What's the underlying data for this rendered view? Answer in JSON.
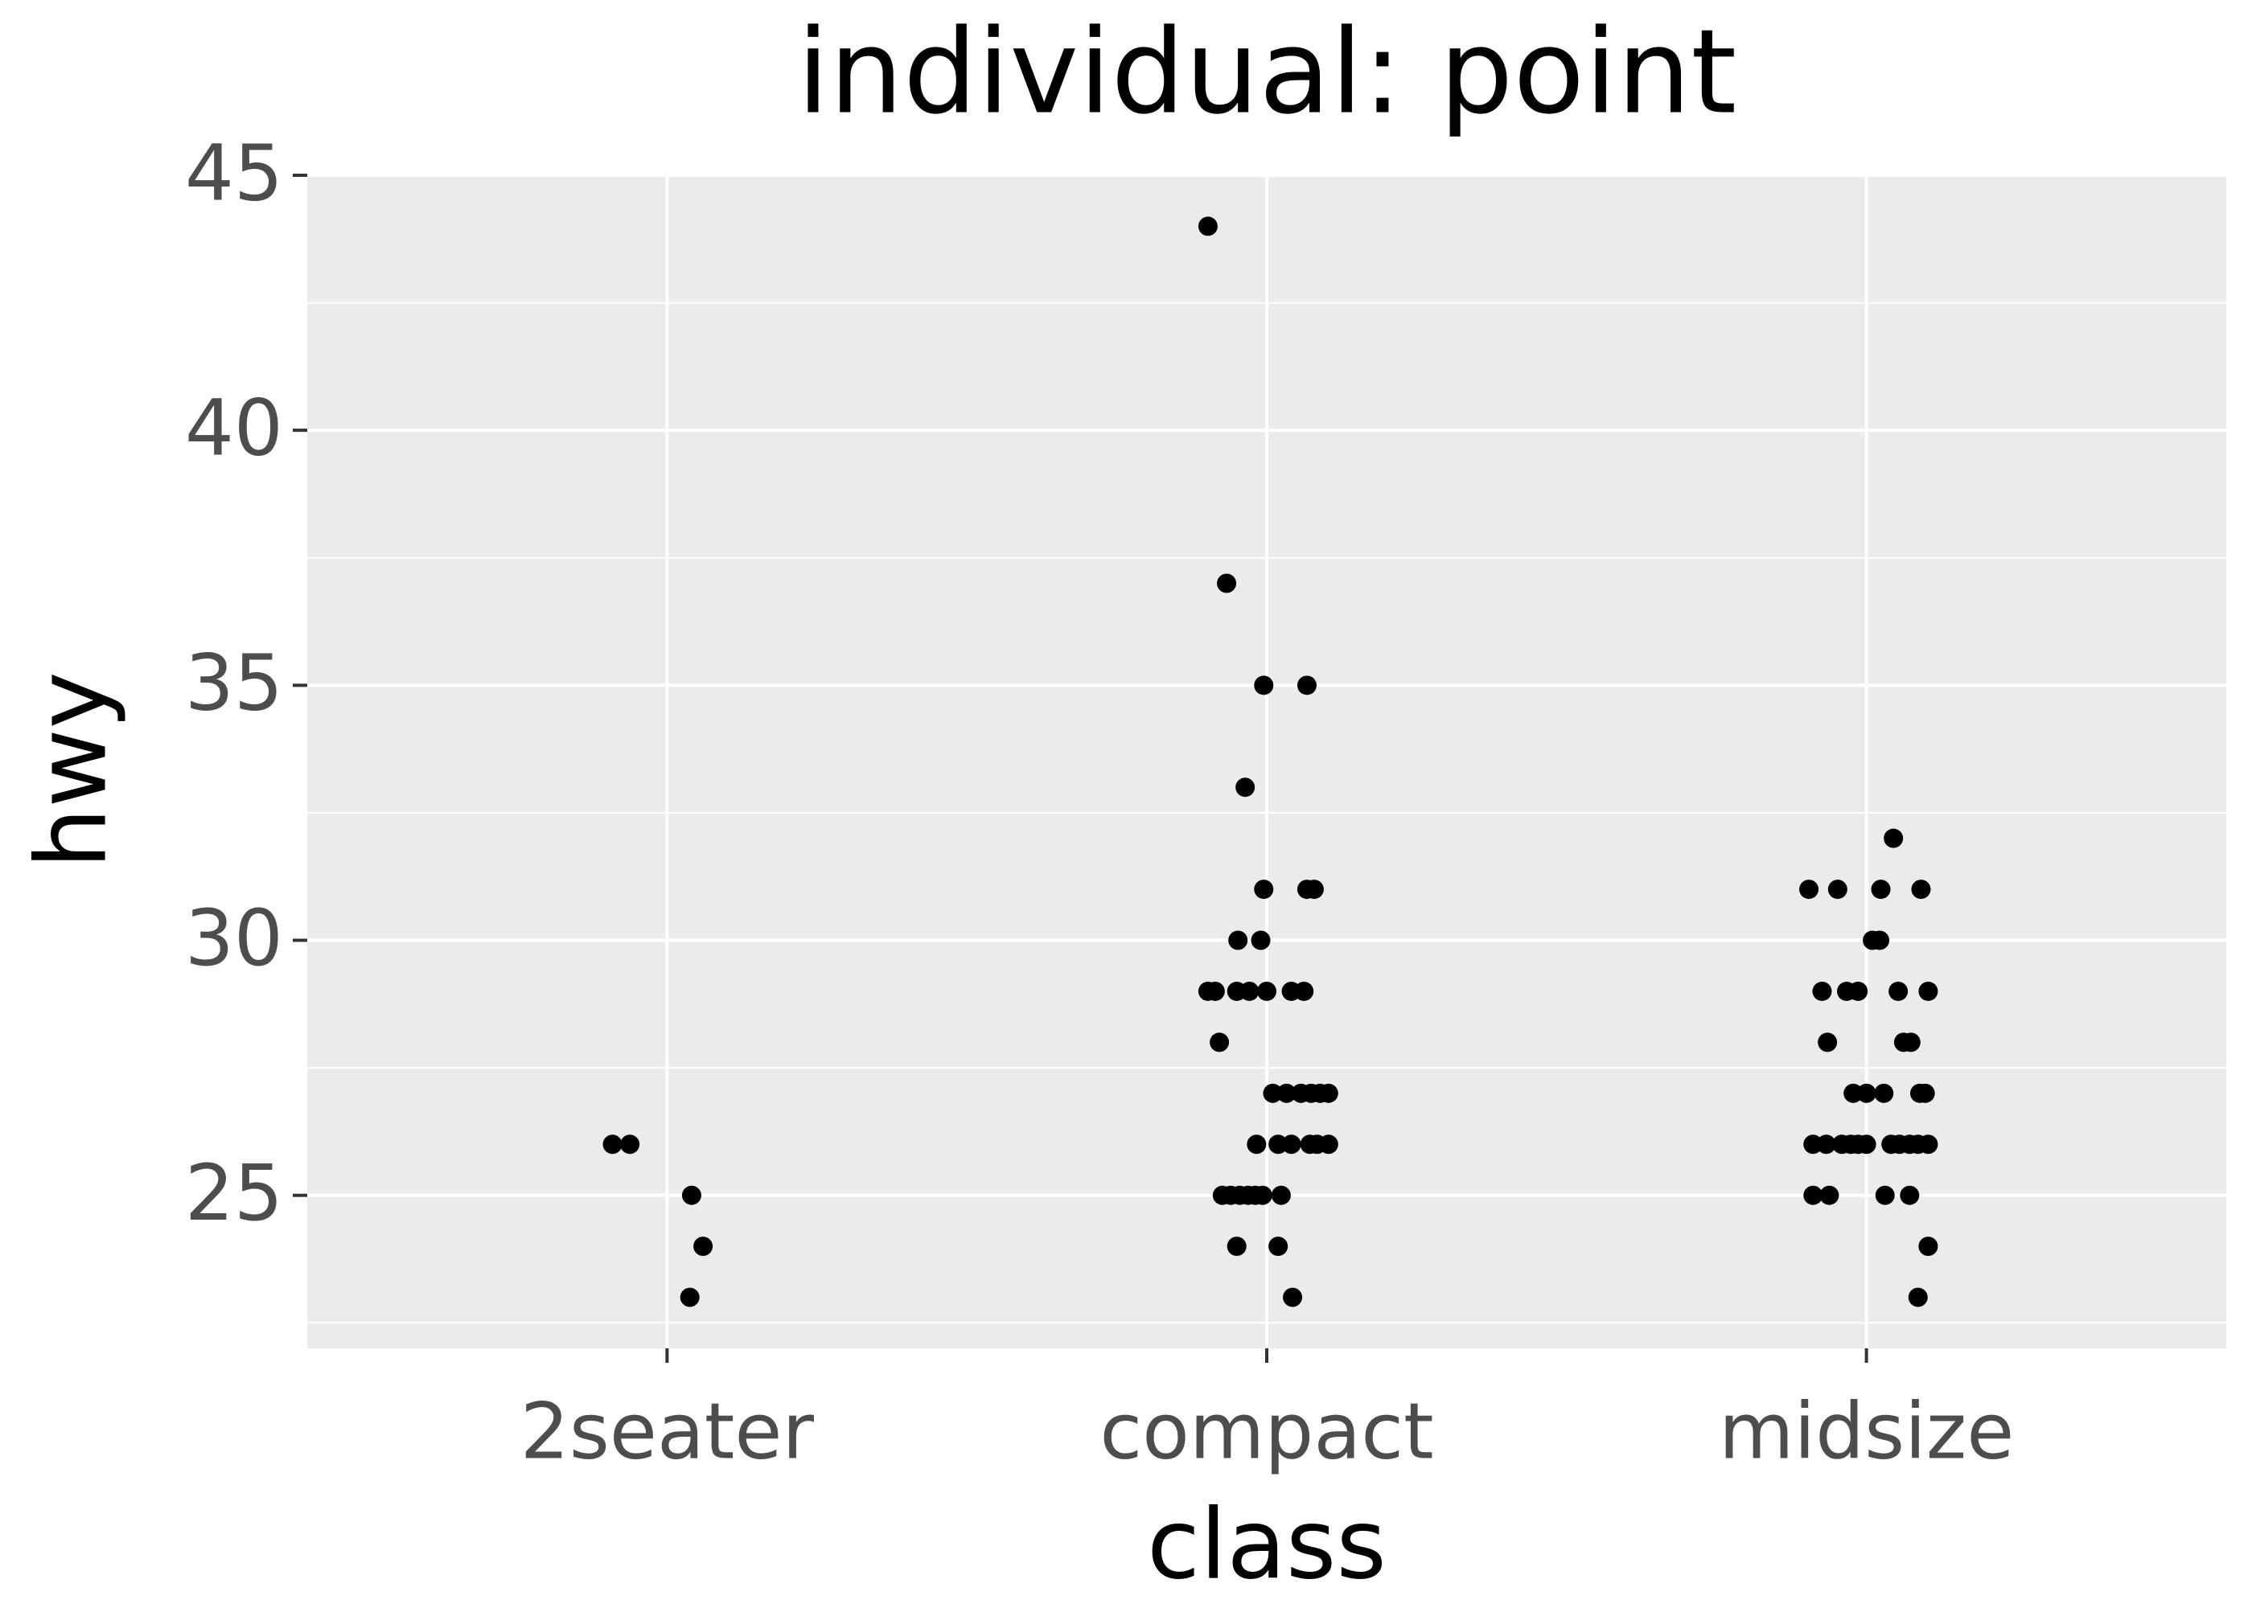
{
  "chart_data": {
    "type": "scatter",
    "title": "individual: point",
    "x_label": "class",
    "y_label": "hwy",
    "xlim": [
      0.4,
      3.6
    ],
    "xticks": [
      {
        "value": 1,
        "label": "2seater"
      },
      {
        "value": 2,
        "label": "compact"
      },
      {
        "value": 3,
        "label": "midsize"
      }
    ],
    "ylim": [
      22,
      45
    ],
    "yticks": [
      25,
      30,
      35,
      40,
      45
    ],
    "y_minor_ticks": [
      22.5,
      27.5,
      32.5,
      37.5,
      42.5
    ],
    "grid": true,
    "series": [
      {
        "color": "#000000",
        "x": [
          0.909,
          0.938,
          1.041,
          1.06,
          1.038,
          1.902,
          1.933,
          1.995,
          2.067,
          1.964,
          1.995,
          2.067,
          2.079,
          1.952,
          1.99,
          1.902,
          1.914,
          1.95,
          1.971,
          2.0,
          2.041,
          2.062,
          1.921,
          2.01,
          2.033,
          2.057,
          2.074,
          2.089,
          2.103,
          1.983,
          2.019,
          2.041,
          2.072,
          2.084,
          2.103,
          1.926,
          1.94,
          1.955,
          1.969,
          1.981,
          1.993,
          2.024,
          1.95,
          2.019,
          2.043,
          3.045,
          2.904,
          2.952,
          3.024,
          3.091,
          3.01,
          3.022,
          2.926,
          2.967,
          2.986,
          3.053,
          3.103,
          2.935,
          3.062,
          3.074,
          2.978,
          3.0,
          3.029,
          3.089,
          3.098,
          2.911,
          2.933,
          2.959,
          2.974,
          2.986,
          3.0,
          3.041,
          3.055,
          3.072,
          3.086,
          3.103,
          2.911,
          2.938,
          3.031,
          3.072,
          3.103,
          3.086
        ],
        "y": [
          26,
          26,
          25,
          24,
          23,
          44,
          37,
          35,
          35,
          33,
          31,
          31,
          31,
          30,
          30,
          29,
          29,
          29,
          29,
          29,
          29,
          29,
          28,
          27,
          27,
          27,
          27,
          27,
          27,
          26,
          26,
          26,
          26,
          26,
          26,
          25,
          25,
          25,
          25,
          25,
          25,
          25,
          24,
          24,
          23,
          32,
          31,
          31,
          31,
          31,
          30,
          30,
          29,
          29,
          29,
          29,
          29,
          28,
          28,
          28,
          27,
          27,
          27,
          27,
          27,
          26,
          26,
          26,
          26,
          26,
          26,
          26,
          26,
          26,
          26,
          26,
          25,
          25,
          25,
          25,
          24,
          23
        ]
      }
    ]
  }
}
